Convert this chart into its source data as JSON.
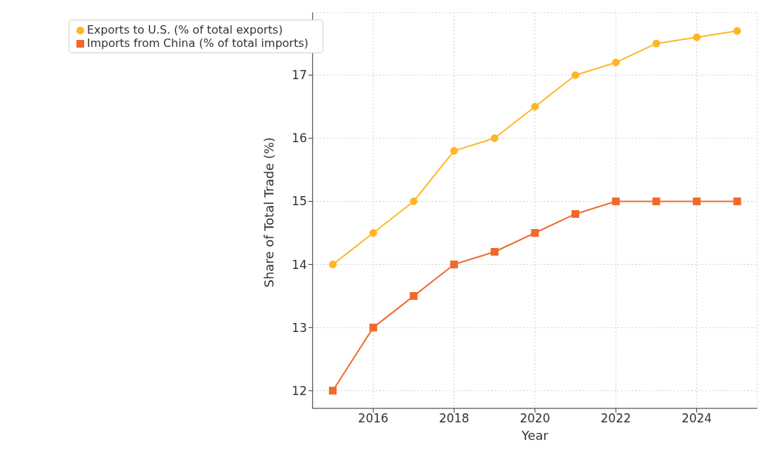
{
  "chart_data": {
    "type": "line",
    "xlabel": "Year",
    "ylabel": "Share of Total Trade (%)",
    "x": [
      2015,
      2016,
      2017,
      2018,
      2019,
      2020,
      2021,
      2022,
      2023,
      2024,
      2025
    ],
    "series": [
      {
        "name": "Exports to U.S. (% of total exports)",
        "color": "#ffb521",
        "marker": "circle",
        "values": [
          14,
          14.5,
          15,
          15.8,
          16,
          16.5,
          17,
          17.2,
          17.5,
          17.6,
          17.7
        ]
      },
      {
        "name": "Imports from China (% of total imports)",
        "color": "#f0692a",
        "marker": "square",
        "values": [
          12,
          13,
          13.5,
          14,
          14.2,
          14.5,
          14.8,
          15,
          15,
          15,
          15
        ]
      }
    ],
    "xlim": [
      2014.5,
      2025.5
    ],
    "xticks": [
      2016,
      2018,
      2020,
      2022,
      2024
    ],
    "ylim": [
      11.72,
      17.99
    ],
    "yticks": [
      12,
      13,
      14,
      15,
      16,
      17
    ],
    "grid": true,
    "legend": "top left",
    "line_style": "solid"
  }
}
